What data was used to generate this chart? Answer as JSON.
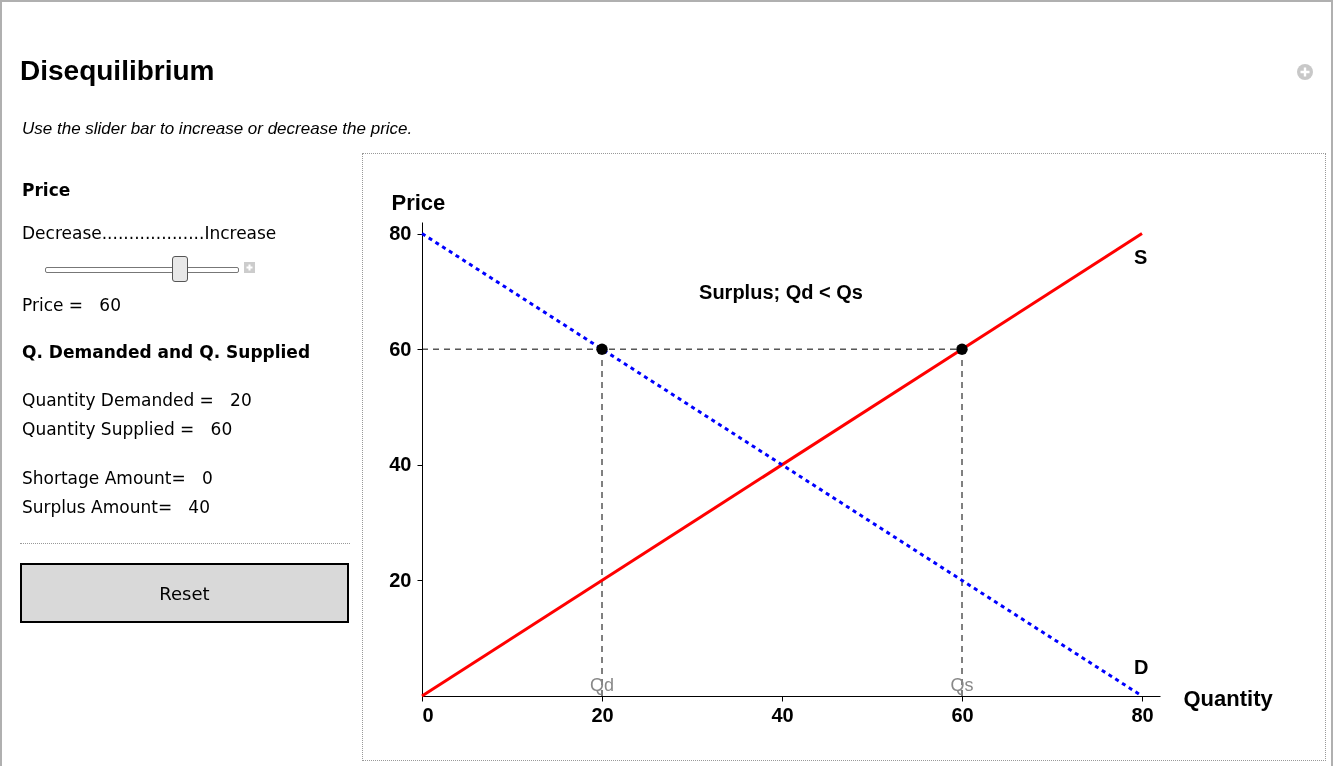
{
  "chart_data": [
    {
      "type": "other",
      "title": "Disequilibrium",
      "subtitle": "Use the slider bar to increase or decrease the price.",
      "annotations": [
        "Price",
        "Decrease...................Increase",
        "Price =   60",
        "Q. Demanded and Q. Supplied",
        "Quantity Demanded =   20",
        "Quantity Supplied =   60",
        "Shortage Amount=   0",
        "Surplus Amount=   40",
        "Reset"
      ]
    },
    {
      "type": "line",
      "xlabel": "Quantity",
      "ylabel": "Price",
      "xlim": [
        0,
        82
      ],
      "ylim": [
        0,
        82
      ],
      "xticks": [
        0,
        20,
        40,
        60,
        80
      ],
      "yticks": [
        20,
        40,
        60,
        80
      ],
      "series": [
        {
          "name": "S",
          "color": "#ff0000",
          "x": [
            0,
            80
          ],
          "values": [
            0,
            80
          ],
          "line_style": "solid"
        },
        {
          "name": "D",
          "color": "#0000ff",
          "x": [
            0,
            80
          ],
          "values": [
            80,
            0
          ],
          "line_style": "dotted"
        },
        {
          "type": "scatter",
          "color": "#000000",
          "marker": "circle",
          "x": [
            20,
            60
          ],
          "values": [
            60,
            60
          ]
        }
      ],
      "ref_lines": [
        {
          "axis": "y",
          "value": 60,
          "color": "#000000",
          "line_style": "dashed"
        },
        {
          "axis": "x",
          "value": 20,
          "label": "Qd",
          "color": "#000000",
          "line_style": "dashed"
        },
        {
          "axis": "x",
          "value": 60,
          "label": "Qs",
          "color": "#000000",
          "line_style": "dashed"
        }
      ],
      "annotations": [
        "Surplus; Qd < Qs"
      ]
    }
  ]
}
